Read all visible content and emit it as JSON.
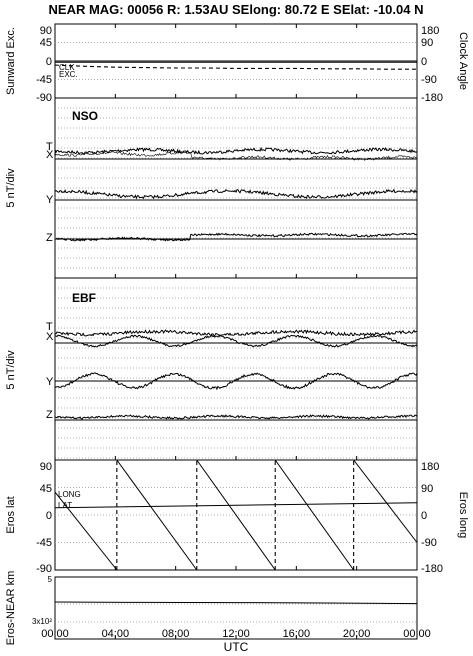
{
  "header": {
    "title": "NEAR MAG: 00056  R: 1.53AU  SElong:   80.72 E  SElat:  -10.04 N"
  },
  "chart_data": [
    {
      "type": "line",
      "panel": "clock",
      "ylabel_left": "Sunward Exc.",
      "ylabel_right": "Clock Angle",
      "yticks_left": [
        "90",
        "45",
        "0",
        "-45",
        "-90"
      ],
      "yticks_right": [
        "180",
        "90",
        "0",
        "-90",
        "-180"
      ],
      "ylim_left": [
        -90,
        90
      ],
      "ylim_right": [
        -180,
        180
      ],
      "series": [
        {
          "name": "CLK",
          "x": [
            0,
            2,
            4,
            6,
            8,
            10,
            12,
            14,
            16,
            18,
            20,
            22,
            24
          ],
          "y": [
            -10,
            -13,
            -15,
            -16,
            -17,
            -17,
            -18,
            -18,
            -18,
            -19,
            -19,
            -20,
            -20
          ]
        },
        {
          "name": "EXC.",
          "x": [
            0,
            2,
            4,
            6,
            8,
            10,
            12,
            14,
            16,
            18,
            20,
            22,
            24
          ],
          "y": [
            -3,
            -3,
            -3,
            -3,
            -3,
            -3,
            -3,
            -3,
            -3,
            -3,
            -3,
            -3,
            -3
          ]
        }
      ]
    },
    {
      "type": "line",
      "panel": "NSO",
      "label": "NSO",
      "ylabel": "5 nT/div",
      "component_labels": [
        "T",
        "X",
        "Y",
        "Z"
      ]
    },
    {
      "type": "line",
      "panel": "EBF",
      "label": "EBF",
      "ylabel": "5 nT/div",
      "component_labels": [
        "T",
        "X",
        "Y",
        "Z"
      ]
    },
    {
      "type": "line",
      "panel": "eros",
      "ylabel_left": "Eros lat",
      "ylabel_right": "Eros long",
      "yticks_left": [
        "90",
        "45",
        "0",
        "-45",
        "-90"
      ],
      "yticks_right": [
        "180",
        "90",
        "0",
        "-90",
        "-180"
      ],
      "ylim_left": [
        -90,
        90
      ],
      "ylim_right": [
        -180,
        180
      ],
      "series": [
        {
          "name": "LAT",
          "x": [
            0,
            24
          ],
          "y": [
            12,
            20
          ]
        },
        {
          "name": "LONG",
          "x": [
            0,
            4.1,
            4.1,
            9.4,
            9.4,
            14.6,
            14.6,
            19.8,
            19.8,
            24
          ],
          "y": [
            75,
            -180,
            180,
            -180,
            180,
            -180,
            180,
            -180,
            180,
            -90
          ]
        }
      ]
    },
    {
      "type": "line",
      "panel": "range",
      "ylabel": "Eros-NEAR km",
      "yscale": "log",
      "yticks": [
        "5",
        "3x10²"
      ],
      "series": [
        {
          "name": "range",
          "x": [
            0,
            6,
            12,
            18,
            24
          ],
          "y": [
            340,
            338,
            337,
            335,
            332
          ]
        }
      ]
    }
  ],
  "xaxis": {
    "label": "UTC",
    "ticks": [
      "00:00",
      "04:00",
      "08:00",
      "12:00",
      "16:00",
      "20:00",
      "00:00"
    ],
    "xlim": [
      0,
      24
    ]
  }
}
